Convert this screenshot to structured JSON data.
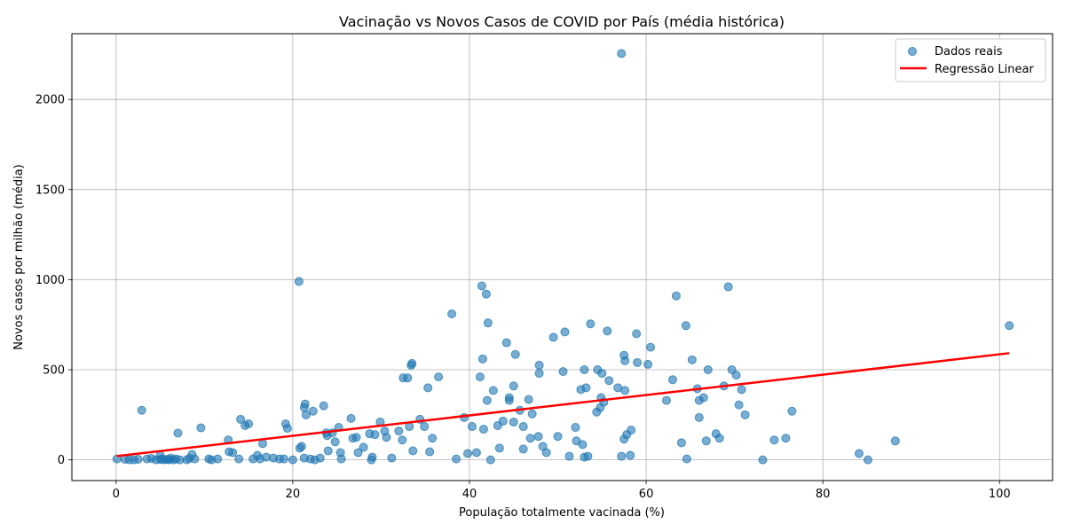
{
  "chart_data": {
    "type": "scatter",
    "title": "Vacinação vs Novos Casos de COVID por País (média histórica)",
    "xlabel": "População totalmente vacinada (%)",
    "ylabel": "Novos casos por milhão (média)",
    "xlim": [
      -5,
      106
    ],
    "ylim": [
      -115,
      2365
    ],
    "xticks": [
      0,
      20,
      40,
      60,
      80,
      100
    ],
    "yticks": [
      0,
      500,
      1000,
      1500,
      2000
    ],
    "grid": true,
    "legend_position": "top-right",
    "colors": {
      "points": "#1f77b4",
      "regression": "#ff0000",
      "grid": "#b0b0b0"
    },
    "series": [
      {
        "name": "Dados reais",
        "kind": "scatter",
        "points": [
          [
            0.1,
            5
          ],
          [
            1,
            3
          ],
          [
            1.5,
            0
          ],
          [
            2,
            0
          ],
          [
            2.5,
            3
          ],
          [
            2.9,
            275
          ],
          [
            3.5,
            5
          ],
          [
            4,
            8
          ],
          [
            4.5,
            0
          ],
          [
            5,
            2
          ],
          [
            5,
            25
          ],
          [
            5.2,
            5
          ],
          [
            5.5,
            0
          ],
          [
            5.8,
            3
          ],
          [
            6,
            0
          ],
          [
            6.2,
            10
          ],
          [
            6.5,
            0
          ],
          [
            6.8,
            5
          ],
          [
            7,
            148
          ],
          [
            7.2,
            0
          ],
          [
            8,
            0
          ],
          [
            8.3,
            8
          ],
          [
            8.6,
            30
          ],
          [
            8.9,
            5
          ],
          [
            9.6,
            178
          ],
          [
            10.5,
            5
          ],
          [
            10.8,
            0
          ],
          [
            11.5,
            5
          ],
          [
            12.7,
            110
          ],
          [
            12.8,
            45
          ],
          [
            13.2,
            40
          ],
          [
            13.9,
            5
          ],
          [
            14.1,
            225
          ],
          [
            14.6,
            190
          ],
          [
            15,
            200
          ],
          [
            15.5,
            5
          ],
          [
            16,
            25
          ],
          [
            16.3,
            5
          ],
          [
            16.6,
            90
          ],
          [
            17,
            15
          ],
          [
            17.8,
            10
          ],
          [
            18.5,
            5
          ],
          [
            19,
            5
          ],
          [
            19.2,
            200
          ],
          [
            19.4,
            175
          ],
          [
            20,
            0
          ],
          [
            20.7,
            990
          ],
          [
            20.8,
            65
          ],
          [
            21,
            75
          ],
          [
            21.3,
            10
          ],
          [
            21.3,
            290
          ],
          [
            21.4,
            310
          ],
          [
            21.5,
            250
          ],
          [
            22,
            5
          ],
          [
            22.3,
            270
          ],
          [
            22.5,
            0
          ],
          [
            23.1,
            10
          ],
          [
            23.5,
            300
          ],
          [
            23.8,
            150
          ],
          [
            23.9,
            135
          ],
          [
            24,
            50
          ],
          [
            24.5,
            150
          ],
          [
            24.8,
            100
          ],
          [
            25.2,
            180
          ],
          [
            25.4,
            40
          ],
          [
            25.5,
            5
          ],
          [
            26.6,
            230
          ],
          [
            26.8,
            120
          ],
          [
            27.2,
            125
          ],
          [
            27.4,
            40
          ],
          [
            28,
            70
          ],
          [
            28.7,
            145
          ],
          [
            28.9,
            0
          ],
          [
            29,
            15
          ],
          [
            29.3,
            140
          ],
          [
            29.9,
            210
          ],
          [
            30.4,
            160
          ],
          [
            30.6,
            125
          ],
          [
            31.2,
            10
          ],
          [
            32,
            160
          ],
          [
            32.4,
            110
          ],
          [
            32.5,
            455
          ],
          [
            33,
            455
          ],
          [
            33.2,
            185
          ],
          [
            33.4,
            525
          ],
          [
            33.5,
            535
          ],
          [
            33.6,
            50
          ],
          [
            34.4,
            225
          ],
          [
            34.9,
            185
          ],
          [
            35.3,
            400
          ],
          [
            35.8,
            120
          ],
          [
            35.5,
            45
          ],
          [
            36.5,
            460
          ],
          [
            38,
            810
          ],
          [
            38.5,
            5
          ],
          [
            39.4,
            235
          ],
          [
            39.8,
            35
          ],
          [
            40.3,
            185
          ],
          [
            40.8,
            40
          ],
          [
            41.2,
            460
          ],
          [
            41.4,
            965
          ],
          [
            41.5,
            560
          ],
          [
            41.6,
            170
          ],
          [
            41.9,
            920
          ],
          [
            42,
            330
          ],
          [
            42.1,
            760
          ],
          [
            42.4,
            0
          ],
          [
            42.7,
            385
          ],
          [
            43.2,
            190
          ],
          [
            43.4,
            65
          ],
          [
            43.8,
            215
          ],
          [
            44.2,
            650
          ],
          [
            44.5,
            330
          ],
          [
            44.5,
            345
          ],
          [
            45,
            210
          ],
          [
            45,
            410
          ],
          [
            45.2,
            585
          ],
          [
            45.7,
            275
          ],
          [
            46.1,
            60
          ],
          [
            46.1,
            185
          ],
          [
            46.7,
            335
          ],
          [
            46.9,
            120
          ],
          [
            47.1,
            255
          ],
          [
            47.8,
            130
          ],
          [
            47.9,
            480
          ],
          [
            47.9,
            525
          ],
          [
            48.3,
            75
          ],
          [
            48.7,
            40
          ],
          [
            49.5,
            680
          ],
          [
            50,
            130
          ],
          [
            50.6,
            490
          ],
          [
            50.8,
            710
          ],
          [
            51.3,
            20
          ],
          [
            52,
            180
          ],
          [
            52.1,
            105
          ],
          [
            52.6,
            390
          ],
          [
            52.8,
            85
          ],
          [
            53,
            500
          ],
          [
            53,
            15
          ],
          [
            53.4,
            20
          ],
          [
            53.2,
            400
          ],
          [
            53.7,
            755
          ],
          [
            54.4,
            265
          ],
          [
            54.5,
            500
          ],
          [
            54.8,
            290
          ],
          [
            54.9,
            345
          ],
          [
            55,
            480
          ],
          [
            55.2,
            320
          ],
          [
            55.6,
            715
          ],
          [
            55.8,
            440
          ],
          [
            56.8,
            400
          ],
          [
            57.2,
            20
          ],
          [
            57.2,
            2255
          ],
          [
            57.5,
            580
          ],
          [
            57.6,
            385
          ],
          [
            57.6,
            550
          ],
          [
            57.5,
            115
          ],
          [
            57.8,
            140
          ],
          [
            58.2,
            25
          ],
          [
            58.3,
            165
          ],
          [
            58.9,
            700
          ],
          [
            59,
            540
          ],
          [
            60.2,
            530
          ],
          [
            60.5,
            625
          ],
          [
            62.3,
            330
          ],
          [
            63,
            445
          ],
          [
            63.4,
            910
          ],
          [
            64,
            95
          ],
          [
            64.5,
            745
          ],
          [
            64.6,
            5
          ],
          [
            65.2,
            555
          ],
          [
            65.8,
            395
          ],
          [
            66,
            235
          ],
          [
            66,
            330
          ],
          [
            66.5,
            345
          ],
          [
            66.8,
            105
          ],
          [
            67,
            500
          ],
          [
            67.9,
            145
          ],
          [
            68.3,
            120
          ],
          [
            68.8,
            410
          ],
          [
            69.3,
            960
          ],
          [
            69.7,
            500
          ],
          [
            70.2,
            470
          ],
          [
            70.5,
            305
          ],
          [
            70.8,
            390
          ],
          [
            71.2,
            250
          ],
          [
            73.2,
            0
          ],
          [
            74.5,
            110
          ],
          [
            75.8,
            120
          ],
          [
            76.5,
            270
          ],
          [
            84.1,
            35
          ],
          [
            85.1,
            0
          ],
          [
            88.2,
            105
          ],
          [
            101.1,
            745
          ]
        ]
      },
      {
        "name": "Regressão Linear",
        "kind": "line",
        "points": [
          [
            0.1,
            21
          ],
          [
            101.1,
            592
          ]
        ]
      }
    ]
  }
}
